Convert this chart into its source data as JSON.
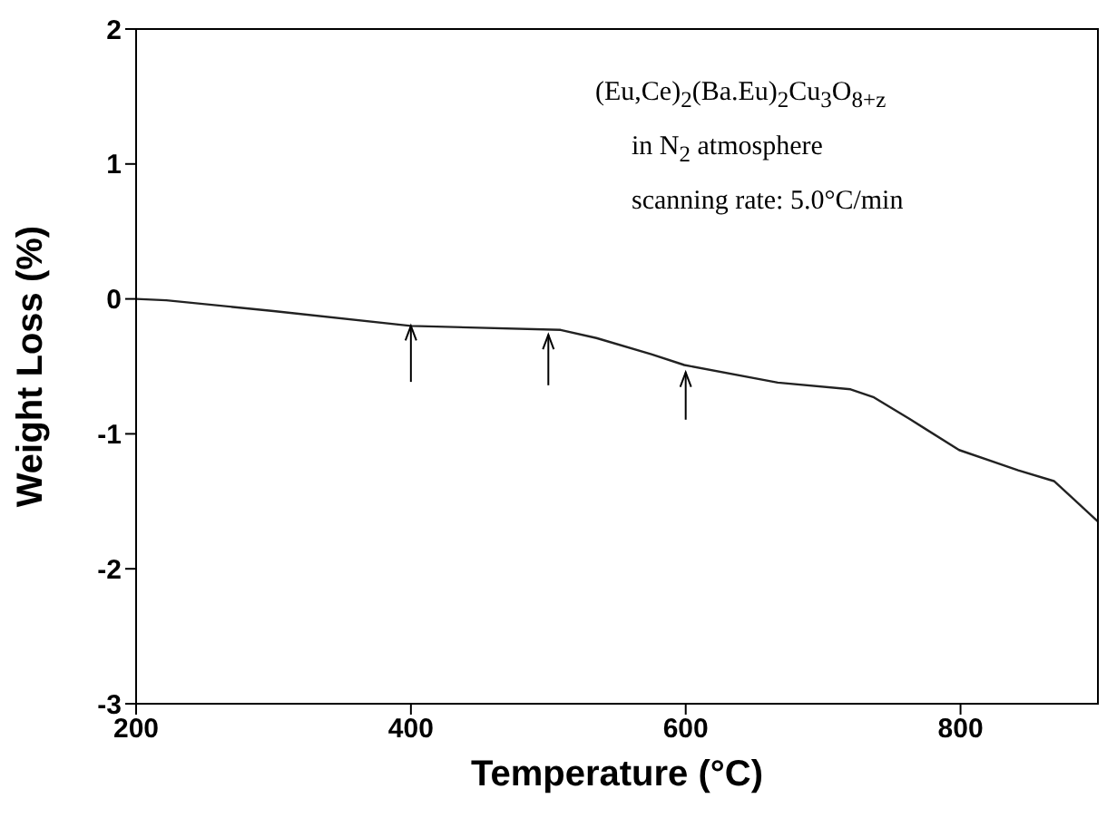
{
  "chart_data": {
    "type": "line",
    "xlabel": "Temperature (°C)",
    "ylabel": "Weight Loss (%)",
    "annotations": [
      "(Eu,Ce)$_{2}$(Ba.Eu)$_{2}$Cu$_{3}$O$_{8+z}$",
      "in N$_{2}$ atmosphere",
      "scanning rate: 5.0°C/min"
    ],
    "series": [
      {
        "color": "#222222",
        "x": [
          200,
          222,
          300,
          400,
          509,
          535,
          575,
          599,
          667,
          720,
          737,
          763,
          799,
          842,
          868,
          882,
          900
        ],
        "values": [
          0,
          -0.01,
          -0.09,
          -0.2,
          -0.23,
          -0.29,
          -0.41,
          -0.49,
          -0.62,
          -0.67,
          -0.73,
          -0.89,
          -1.12,
          -1.27,
          -1.35,
          -1.48,
          -1.65
        ]
      }
    ],
    "xlim": [
      200,
      900
    ],
    "xticks": [
      200,
      400,
      600,
      800
    ],
    "ylim": [
      -3,
      2
    ],
    "yticks": [
      -3,
      -2,
      -1,
      0,
      1,
      2
    ],
    "grid": false,
    "legend": false,
    "marker": "none",
    "line_style": "solid"
  }
}
